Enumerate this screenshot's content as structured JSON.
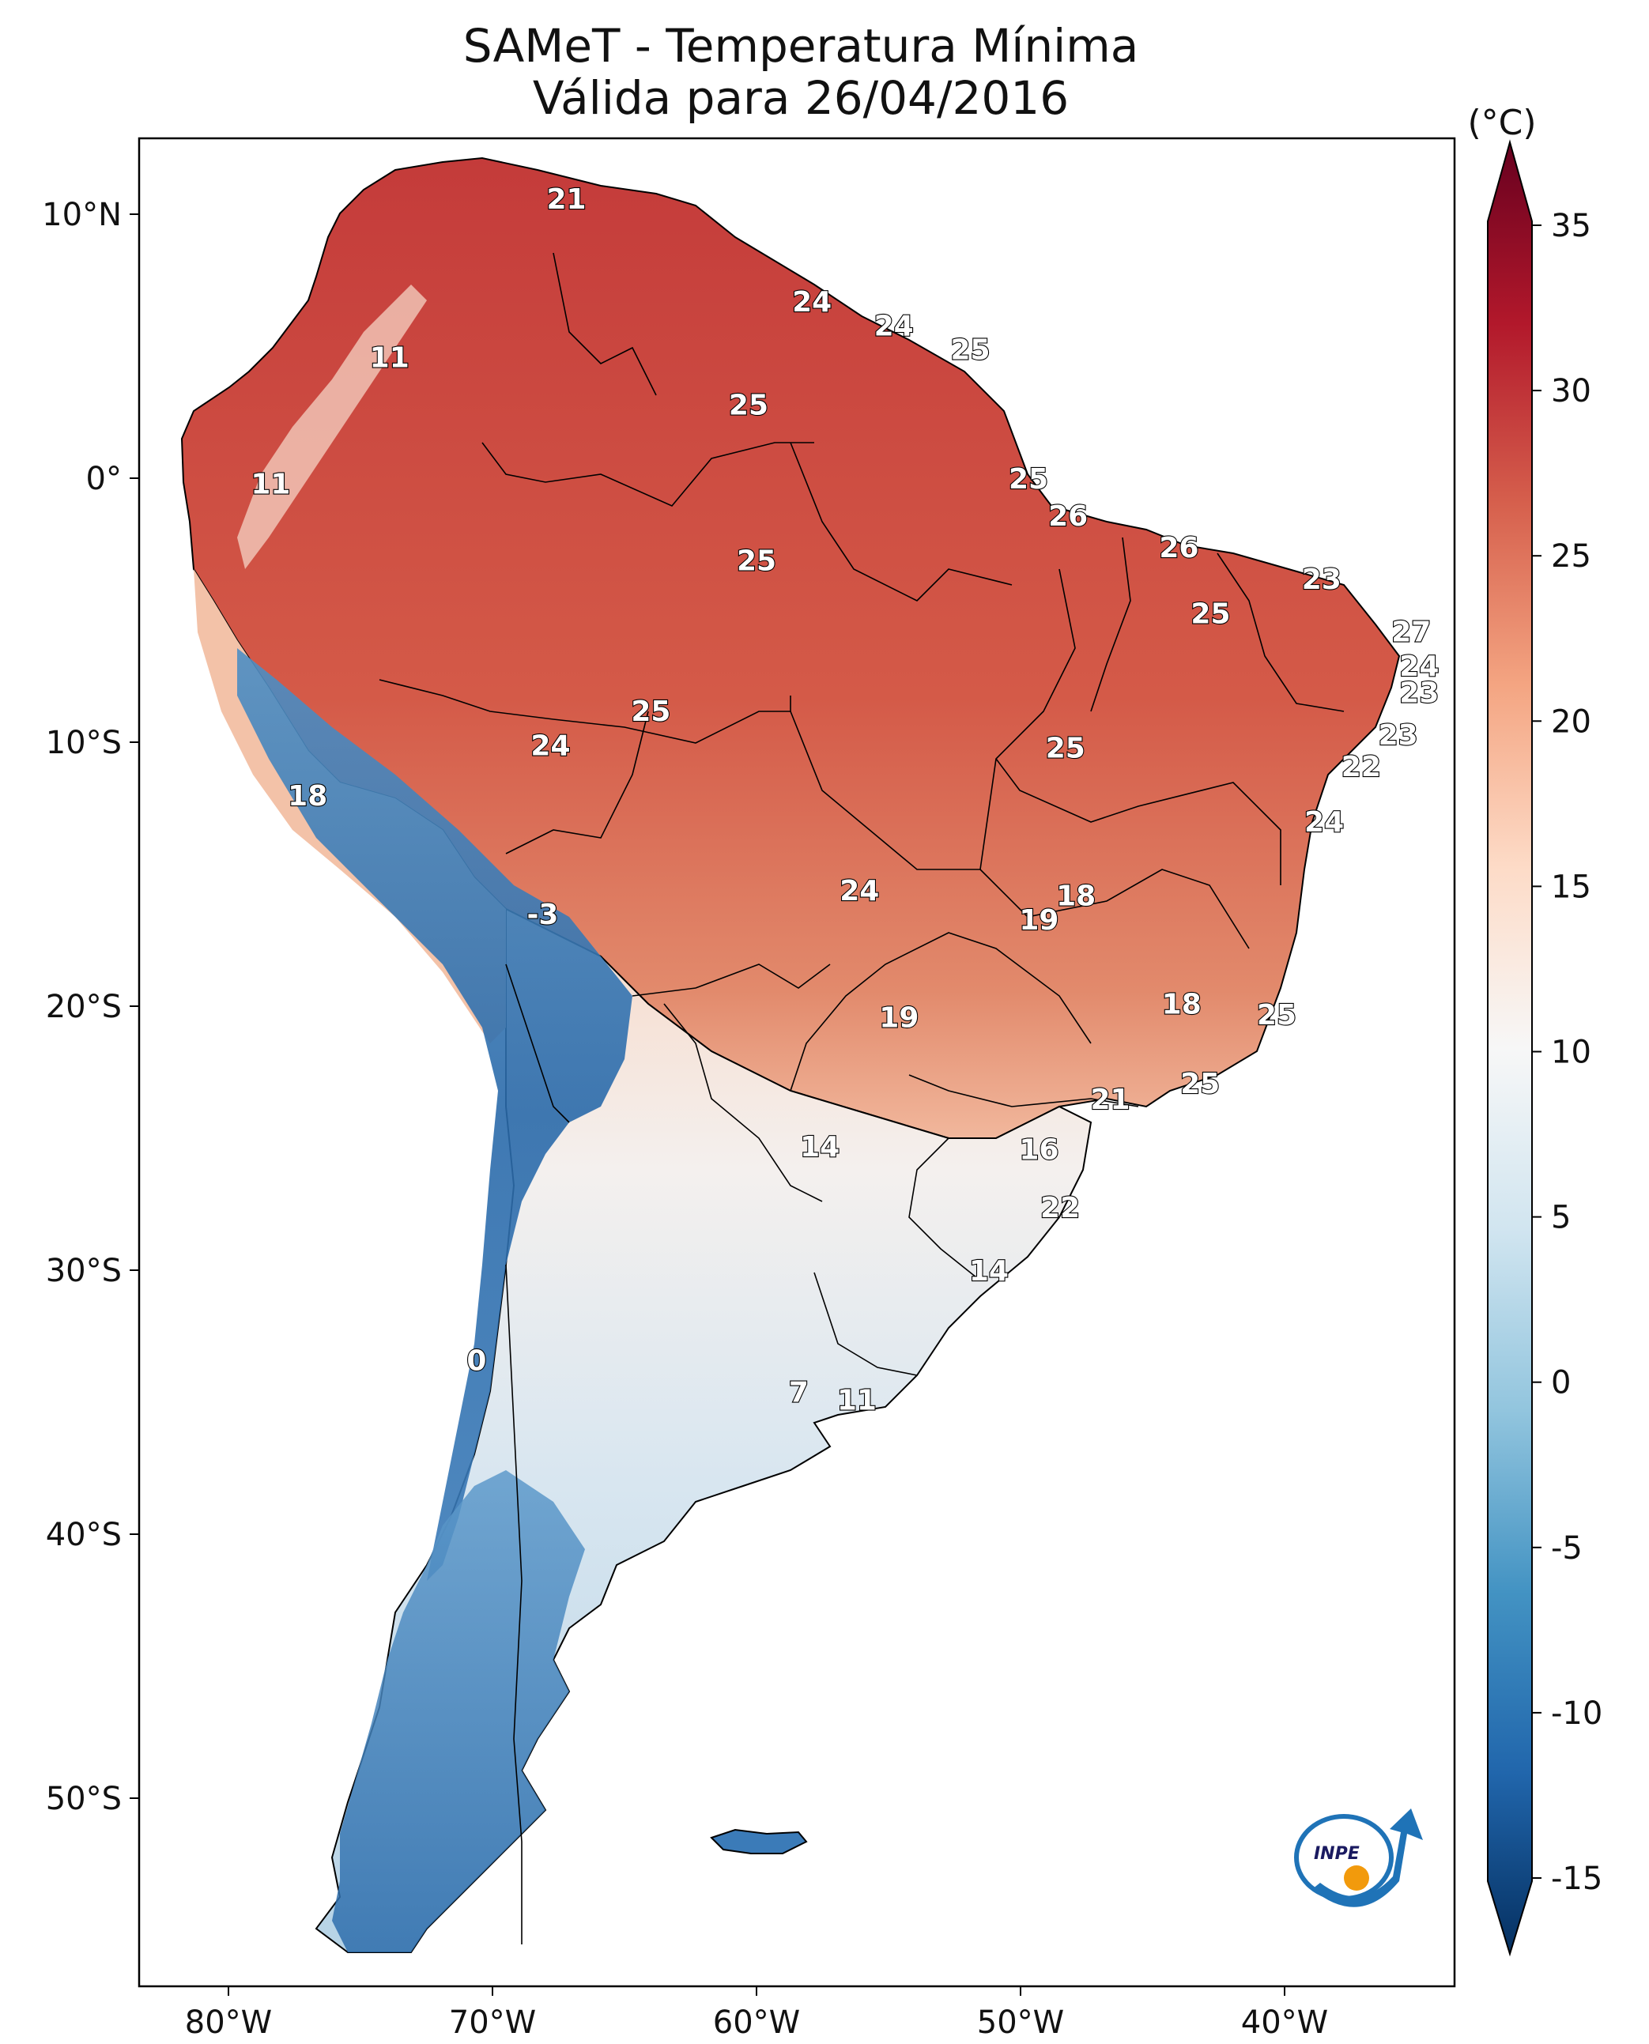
{
  "title": {
    "line1": "SAMeT - Temperatura Mínima",
    "line2": "Válida para 26/04/2016"
  },
  "axes": {
    "lon_ticks": [
      "80°W",
      "70°W",
      "60°W",
      "50°W",
      "40°W"
    ],
    "lat_ticks": [
      "10°N",
      "0°",
      "10°S",
      "20°S",
      "30°S",
      "40°S",
      "50°S"
    ]
  },
  "colorbar": {
    "unit_label": "(°C)",
    "tick_labels": [
      "35",
      "30",
      "25",
      "20",
      "15",
      "10",
      "5",
      "0",
      "-5",
      "-10",
      "-15"
    ],
    "range": [
      -15,
      35
    ],
    "extend": "both",
    "colormap": "RdBu_r"
  },
  "station_labels": [
    {
      "value": "21",
      "lon": -67.2,
      "lat": 10.6
    },
    {
      "value": "11",
      "lon": -73.9,
      "lat": 4.6
    },
    {
      "value": "24",
      "lon": -57.9,
      "lat": 6.7
    },
    {
      "value": "24",
      "lon": -54.8,
      "lat": 5.8
    },
    {
      "value": "25",
      "lon": -51.9,
      "lat": 4.9
    },
    {
      "value": "25",
      "lon": -60.3,
      "lat": 2.8
    },
    {
      "value": "11",
      "lon": -78.4,
      "lat": -0.2
    },
    {
      "value": "25",
      "lon": -49.7,
      "lat": 0.0
    },
    {
      "value": "26",
      "lon": -48.2,
      "lat": -1.4
    },
    {
      "value": "26",
      "lon": -44.0,
      "lat": -2.6
    },
    {
      "value": "25",
      "lon": -60.0,
      "lat": -3.1
    },
    {
      "value": "23",
      "lon": -38.6,
      "lat": -3.8
    },
    {
      "value": "25",
      "lon": -42.8,
      "lat": -5.1
    },
    {
      "value": "27",
      "lon": -35.2,
      "lat": -5.8
    },
    {
      "value": "24",
      "lon": -34.9,
      "lat": -7.1
    },
    {
      "value": "23",
      "lon": -34.9,
      "lat": -8.1
    },
    {
      "value": "25",
      "lon": -64.0,
      "lat": -8.8
    },
    {
      "value": "23",
      "lon": -35.7,
      "lat": -9.7
    },
    {
      "value": "24",
      "lon": -67.8,
      "lat": -10.1
    },
    {
      "value": "25",
      "lon": -48.3,
      "lat": -10.2
    },
    {
      "value": "22",
      "lon": -37.1,
      "lat": -10.9
    },
    {
      "value": "18",
      "lon": -77.0,
      "lat": -12.0
    },
    {
      "value": "24",
      "lon": -38.5,
      "lat": -13.0
    },
    {
      "value": "24",
      "lon": -56.1,
      "lat": -15.6
    },
    {
      "value": "18",
      "lon": -47.9,
      "lat": -15.8
    },
    {
      "value": "19",
      "lon": -49.3,
      "lat": -16.7
    },
    {
      "value": "-3",
      "lon": -68.1,
      "lat": -16.5
    },
    {
      "value": "18",
      "lon": -43.9,
      "lat": -19.9
    },
    {
      "value": "19",
      "lon": -54.6,
      "lat": -20.4
    },
    {
      "value": "25",
      "lon": -40.3,
      "lat": -20.3
    },
    {
      "value": "25",
      "lon": -43.2,
      "lat": -22.9
    },
    {
      "value": "21",
      "lon": -46.6,
      "lat": -23.5
    },
    {
      "value": "14",
      "lon": -57.6,
      "lat": -25.3
    },
    {
      "value": "16",
      "lon": -49.3,
      "lat": -25.4
    },
    {
      "value": "22",
      "lon": -48.5,
      "lat": -27.6
    },
    {
      "value": "14",
      "lon": -51.2,
      "lat": -30.0
    },
    {
      "value": "0",
      "lon": -70.6,
      "lat": -33.4
    },
    {
      "value": "7",
      "lon": -58.4,
      "lat": -34.6
    },
    {
      "value": "11",
      "lon": -56.2,
      "lat": -34.9
    }
  ],
  "logo": {
    "text": "INPE"
  }
}
